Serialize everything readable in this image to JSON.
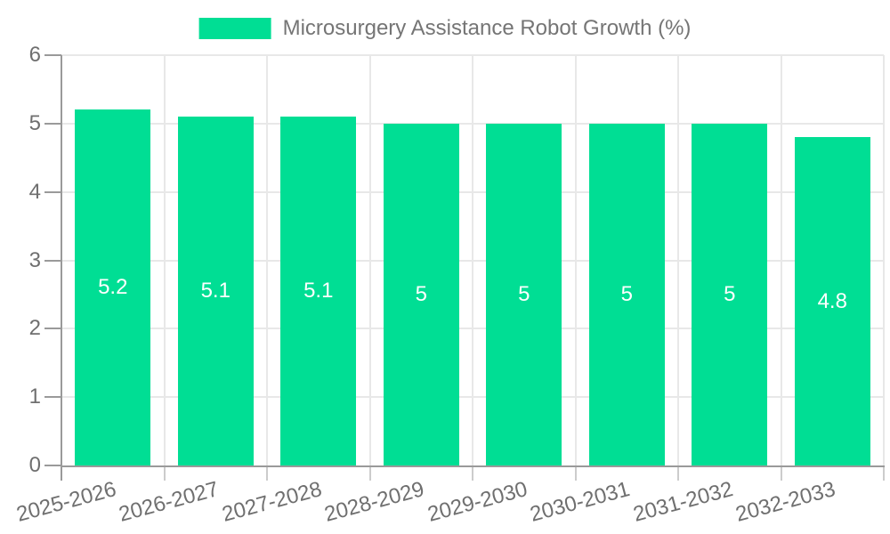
{
  "chart_data": {
    "type": "bar",
    "title": "Microsurgery Assistance Robot Growth (%)",
    "legend": {
      "label": "Microsurgery Assistance Robot Growth (%)",
      "position": "top-center"
    },
    "categories": [
      "2025-2026",
      "2026-2027",
      "2027-2028",
      "2028-2029",
      "2029-2030",
      "2030-2031",
      "2031-2032",
      "2032-2033"
    ],
    "series": [
      {
        "name": "Microsurgery Assistance Robot Growth (%)",
        "values": [
          5.2,
          5.1,
          5.1,
          5,
          5,
          5,
          5,
          4.8
        ],
        "value_labels": [
          "5.2",
          "5.1",
          "5.1",
          "5",
          "5",
          "5",
          "5",
          "4.8"
        ]
      }
    ],
    "xlabel": "",
    "ylabel": "",
    "ylim": [
      0,
      6
    ],
    "yticks": [
      0,
      1,
      2,
      3,
      4,
      5,
      6
    ],
    "ytick_labels": [
      "0",
      "1",
      "2",
      "3",
      "4",
      "5",
      "6"
    ],
    "grid": true,
    "x_label_rotation_deg": -15,
    "colors": {
      "bar": "#00DE94",
      "grid": "#e8e8e8",
      "axis": "#9a9a9a",
      "tick": "#cccccc",
      "axis_text": "#6f6f6f",
      "value_text": "#ffffff",
      "legend_text": "#757575"
    }
  }
}
